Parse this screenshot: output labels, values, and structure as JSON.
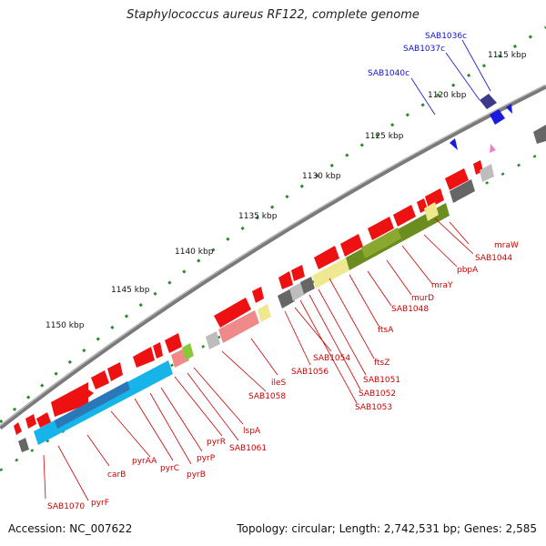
{
  "title": "Staphylococcus aureus RF122, complete genome",
  "footer": {
    "accession": "Accession: NC_007622",
    "summary": "Topology: circular; Length: 2,742,531 bp; Genes: 2,585"
  },
  "colors": {
    "backbone": "#8a8a8a",
    "tick": "#2a8a2a",
    "red_gene": "#ee1111",
    "blue_label": "#1111cc",
    "red_label": "#cc0000"
  },
  "ticks": [
    {
      "label": "1115 kbp"
    },
    {
      "label": "1120 kbp"
    },
    {
      "label": "1125 kbp"
    },
    {
      "label": "1130 kbp"
    },
    {
      "label": "1135 kbp"
    },
    {
      "label": "1140 kbp"
    },
    {
      "label": "1145 kbp"
    },
    {
      "label": "1150 kbp"
    }
  ],
  "blue_labels": [
    "SAB1036c",
    "SAB1037c",
    "SAB1040c"
  ],
  "red_labels": [
    "mraW",
    "SAB1044",
    "pbpA",
    "mraY",
    "murD",
    "SAB1048",
    "ftsA",
    "ftsZ",
    "SAB1051",
    "SAB1052",
    "SAB1053",
    "SAB1054",
    "SAB1056",
    "ileS",
    "SAB1058",
    "lspA",
    "SAB1061",
    "pyrR",
    "pyrP",
    "pyrB",
    "pyrC",
    "pyrAA",
    "carB",
    "pyrF",
    "SAB1070"
  ]
}
